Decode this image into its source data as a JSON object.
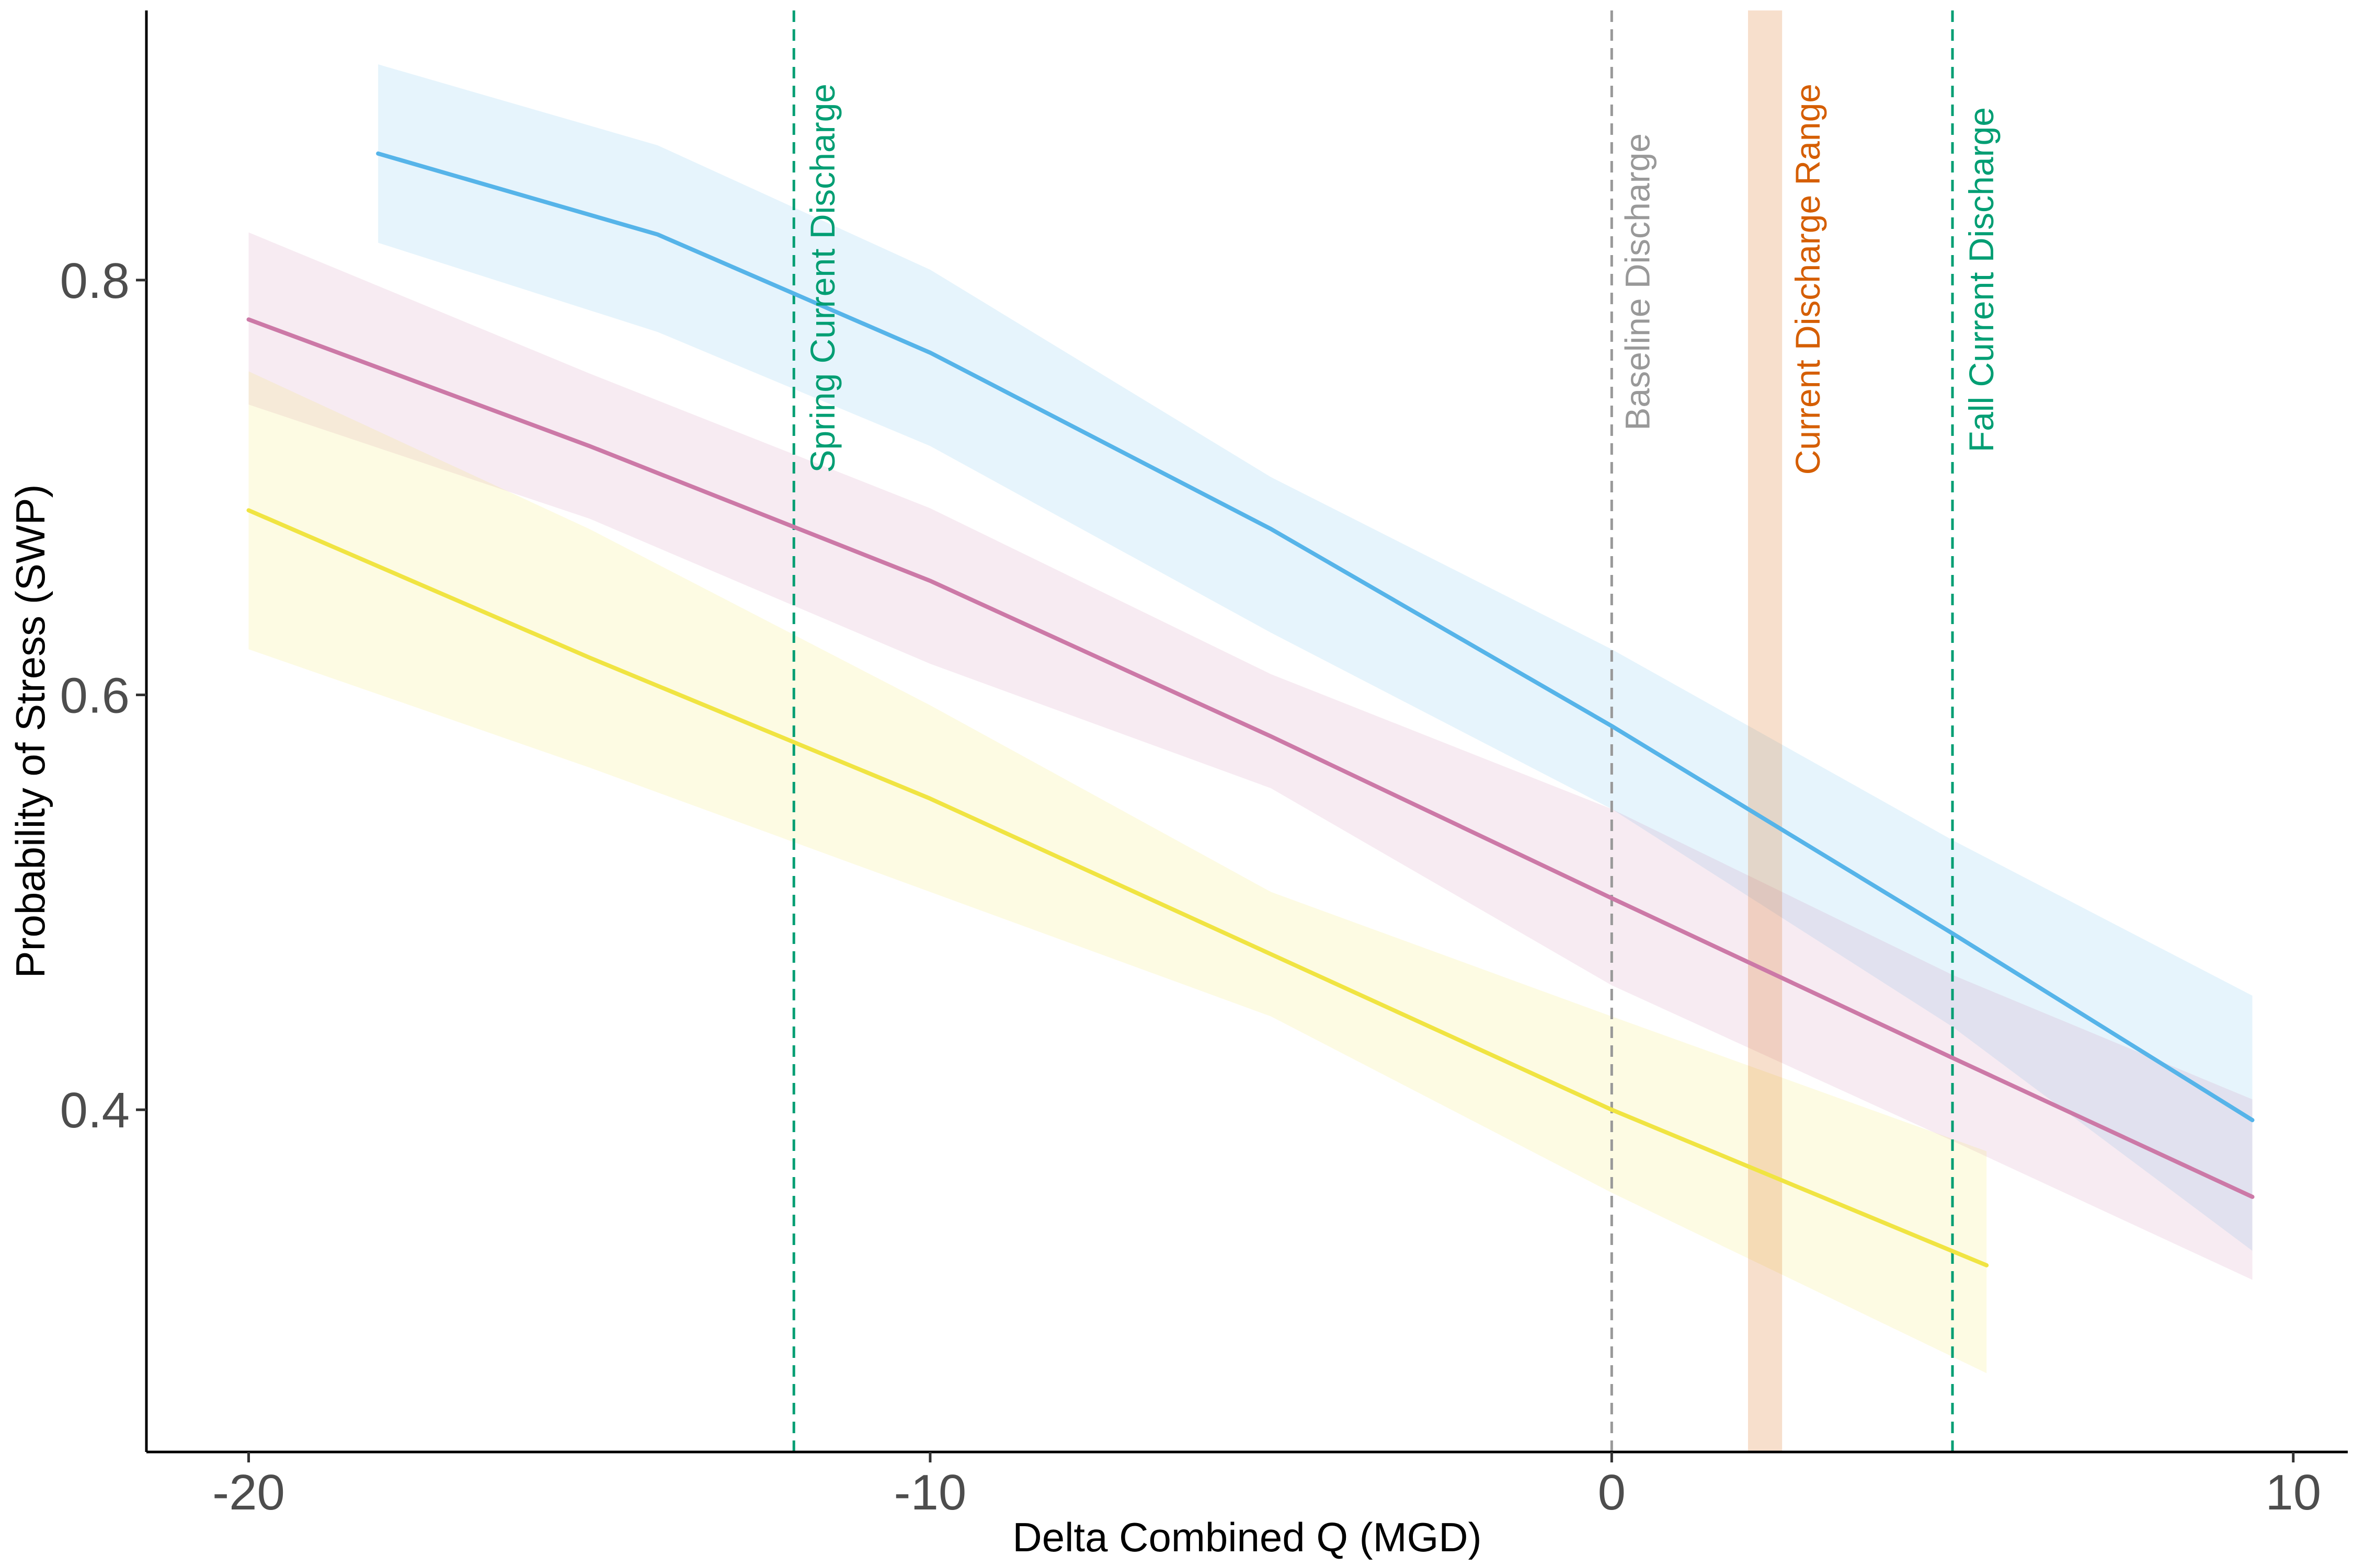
{
  "chart_data": {
    "type": "line",
    "title": "",
    "xlabel": "Delta Combined Q (MGD)",
    "ylabel": "Probability of Stress (SWP)",
    "xlim": [
      -21.5,
      10.8
    ],
    "ylim": [
      0.235,
      0.93
    ],
    "x_ticks": [
      -20,
      -10,
      0,
      10
    ],
    "x_tick_labels": [
      "-20",
      "-10",
      "0",
      "10"
    ],
    "y_ticks": [
      0.4,
      0.6,
      0.8
    ],
    "y_tick_labels": [
      "0.4",
      "0.6",
      "0.8"
    ],
    "grid": false,
    "legend": "none",
    "series": [
      {
        "color": "#56B4E9",
        "x": [
          -18.1,
          -14,
          -10,
          -5,
          0,
          5,
          9.4
        ],
        "y": [
          0.861,
          0.822,
          0.765,
          0.68,
          0.585,
          0.485,
          0.395
        ],
        "lower": [
          0.818,
          0.775,
          0.72,
          0.63,
          0.545,
          0.44,
          0.332
        ],
        "upper": [
          0.904,
          0.865,
          0.805,
          0.705,
          0.622,
          0.53,
          0.455
        ]
      },
      {
        "color": "#CC79A7",
        "x": [
          -20,
          -15,
          -10,
          -5,
          0,
          5,
          9.4
        ],
        "y": [
          0.781,
          0.72,
          0.655,
          0.58,
          0.502,
          0.425,
          0.358
        ],
        "lower": [
          0.74,
          0.685,
          0.615,
          0.555,
          0.46,
          0.385,
          0.318
        ],
        "upper": [
          0.823,
          0.755,
          0.69,
          0.61,
          0.545,
          0.465,
          0.405
        ]
      },
      {
        "color": "#F0E442",
        "x": [
          -20,
          -15,
          -10,
          -5,
          0,
          5.5
        ],
        "y": [
          0.689,
          0.618,
          0.55,
          0.475,
          0.4,
          0.325
        ],
        "lower": [
          0.622,
          0.565,
          0.505,
          0.445,
          0.36,
          0.273
        ],
        "upper": [
          0.756,
          0.68,
          0.595,
          0.505,
          0.445,
          0.38
        ]
      }
    ],
    "reference_lines": [
      {
        "x": -12,
        "label": "Spring Current Discharge",
        "color": "#009E73"
      },
      {
        "x": 0,
        "label": "Baseline Discharge",
        "color": "#999999"
      },
      {
        "x": 5,
        "label": "Fall Current Discharge",
        "color": "#009E73"
      }
    ],
    "reference_band": {
      "x_from": 2,
      "x_to": 2.5,
      "label": "Current Discharge Range",
      "color": "#D55E00"
    }
  }
}
